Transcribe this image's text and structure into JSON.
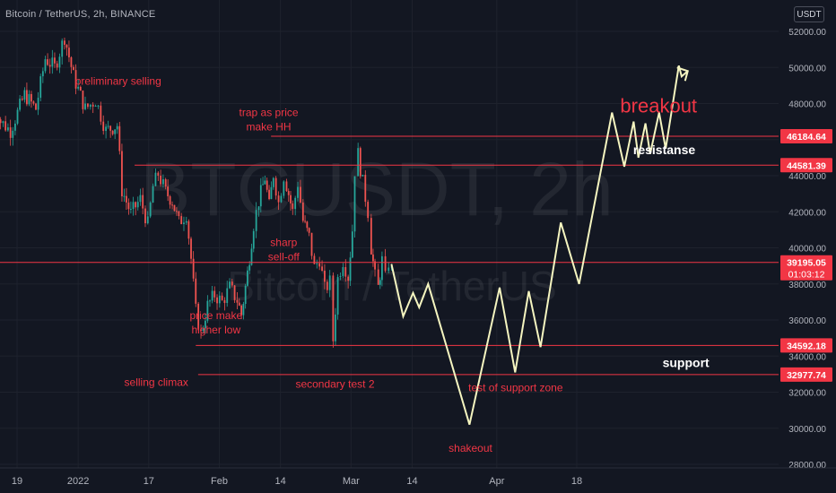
{
  "header": {
    "symbol_title": "Bitcoin / TetherUS, 2h, BINANCE",
    "currency_unit": "USDT"
  },
  "watermark": {
    "ticker": "BTCUSDT, 2h",
    "name": "Bitcoin / TetherUS"
  },
  "colors": {
    "background": "#131722",
    "candle_up": "#26a69a",
    "candle_down": "#ef5350",
    "level_line": "#f23645",
    "projection": "#f5f5c0",
    "annotation": "#f23645",
    "label_white": "#ffffff",
    "axis_text": "#b2b5be"
  },
  "chart_data": {
    "type": "candlestick",
    "title": "Bitcoin / TetherUS, 2h, BINANCE",
    "ylim": [
      27600,
      53000
    ],
    "y_ticks": [
      28000,
      30000,
      32000,
      34000,
      36000,
      38000,
      40000,
      42000,
      44000,
      46000,
      48000,
      50000,
      52000
    ],
    "x_ticks": [
      {
        "label": "19",
        "day": 19
      },
      {
        "label": "2022",
        "day": 32
      },
      {
        "label": "17",
        "day": 47
      },
      {
        "label": "Feb",
        "day": 62
      },
      {
        "label": "14",
        "day": 75
      },
      {
        "label": "Mar",
        "day": 90
      },
      {
        "label": "14",
        "day": 103
      },
      {
        "label": "Apr",
        "day": 121
      },
      {
        "label": "18",
        "day": 138
      }
    ],
    "price_path": [
      {
        "day": 13.3,
        "price": 49000
      },
      {
        "day": 15.5,
        "price": 47000
      },
      {
        "day": 17.6,
        "price": 46500
      },
      {
        "day": 20.6,
        "price": 48500
      },
      {
        "day": 23.0,
        "price": 47700
      },
      {
        "day": 25.0,
        "price": 50500
      },
      {
        "day": 27.0,
        "price": 50000
      },
      {
        "day": 29.1,
        "price": 51700
      },
      {
        "day": 31.0,
        "price": 49500
      },
      {
        "day": 33.5,
        "price": 47700
      },
      {
        "day": 35.7,
        "price": 48200
      },
      {
        "day": 37.9,
        "price": 46500
      },
      {
        "day": 40.3,
        "price": 46800
      },
      {
        "day": 41.3,
        "price": 43200
      },
      {
        "day": 43.2,
        "price": 41900
      },
      {
        "day": 45.2,
        "price": 42700
      },
      {
        "day": 46.8,
        "price": 41300
      },
      {
        "day": 47.9,
        "price": 43400
      },
      {
        "day": 49.0,
        "price": 44100
      },
      {
        "day": 50.6,
        "price": 43100
      },
      {
        "day": 52.0,
        "price": 42600
      },
      {
        "day": 53.4,
        "price": 41400
      },
      {
        "day": 55.0,
        "price": 41900
      },
      {
        "day": 56.0,
        "price": 39400
      },
      {
        "day": 57.0,
        "price": 36500
      },
      {
        "day": 58.1,
        "price": 35200
      },
      {
        "day": 59.5,
        "price": 36800
      },
      {
        "day": 61.0,
        "price": 37400
      },
      {
        "day": 62.6,
        "price": 37000
      },
      {
        "day": 64.2,
        "price": 37800
      },
      {
        "day": 65.8,
        "price": 37100
      },
      {
        "day": 66.7,
        "price": 36300
      },
      {
        "day": 68.0,
        "price": 38600
      },
      {
        "day": 69.3,
        "price": 41300
      },
      {
        "day": 70.4,
        "price": 42600
      },
      {
        "day": 71.7,
        "price": 43900
      },
      {
        "day": 72.6,
        "price": 42300
      },
      {
        "day": 73.5,
        "price": 44100
      },
      {
        "day": 74.6,
        "price": 42500
      },
      {
        "day": 75.7,
        "price": 44000
      },
      {
        "day": 76.3,
        "price": 43500
      },
      {
        "day": 77.6,
        "price": 42000
      },
      {
        "day": 78.7,
        "price": 43600
      },
      {
        "day": 79.8,
        "price": 41500
      },
      {
        "day": 81.1,
        "price": 40600
      },
      {
        "day": 82.2,
        "price": 38900
      },
      {
        "day": 83.3,
        "price": 39400
      },
      {
        "day": 84.4,
        "price": 37700
      },
      {
        "day": 85.5,
        "price": 38100
      },
      {
        "day": 86.2,
        "price": 34900
      },
      {
        "day": 87.2,
        "price": 38300
      },
      {
        "day": 88.3,
        "price": 39300
      },
      {
        "day": 89.4,
        "price": 38400
      },
      {
        "day": 90.3,
        "price": 41000
      },
      {
        "day": 90.8,
        "price": 44300
      },
      {
        "day": 91.5,
        "price": 45200
      },
      {
        "day": 92.5,
        "price": 43600
      },
      {
        "day": 93.6,
        "price": 42000
      },
      {
        "day": 94.3,
        "price": 40000
      },
      {
        "day": 95.1,
        "price": 38400
      },
      {
        "day": 95.8,
        "price": 37800
      },
      {
        "day": 96.6,
        "price": 39300
      },
      {
        "day": 97.3,
        "price": 38300
      },
      {
        "day": 98.0,
        "price": 39200
      },
      {
        "day": 98.6,
        "price": 38700
      }
    ],
    "levels": [
      {
        "label": "46184.64",
        "value": 46184.64,
        "x_start_day": 73
      },
      {
        "label": "44581.39",
        "value": 44581.39,
        "x_start_day": 44
      },
      {
        "label": "39195.05",
        "value": 39195.05,
        "x_start_day": 0,
        "countdown": "01:03:12"
      },
      {
        "label": "34592.18",
        "value": 34592.18,
        "x_start_day": 57
      },
      {
        "label": "32977.74",
        "value": 32977.74,
        "x_start_day": 57.5
      }
    ],
    "projection": [
      {
        "day": 98.6,
        "price": 39100
      },
      {
        "day": 101.1,
        "price": 36200
      },
      {
        "day": 103.2,
        "price": 37500
      },
      {
        "day": 104.5,
        "price": 36700
      },
      {
        "day": 106.4,
        "price": 38000
      },
      {
        "day": 115.2,
        "price": 30200
      },
      {
        "day": 121.6,
        "price": 37800
      },
      {
        "day": 124.9,
        "price": 33100
      },
      {
        "day": 127.8,
        "price": 37600
      },
      {
        "day": 130.3,
        "price": 34500
      },
      {
        "day": 134.6,
        "price": 41400
      },
      {
        "day": 138.5,
        "price": 38000
      },
      {
        "day": 145.5,
        "price": 47500
      },
      {
        "day": 148.1,
        "price": 44500
      },
      {
        "day": 150.1,
        "price": 47000
      },
      {
        "day": 151.1,
        "price": 45000
      },
      {
        "day": 152.6,
        "price": 46900
      },
      {
        "day": 153.6,
        "price": 45200
      },
      {
        "day": 155.5,
        "price": 47500
      },
      {
        "day": 156.9,
        "price": 45500
      },
      {
        "day": 159.7,
        "price": 50100
      },
      {
        "day": 160.3,
        "price": 49500
      },
      {
        "day": 161.6,
        "price": 49800
      }
    ],
    "annotations": [
      {
        "text": "preliminary selling",
        "day": 40.5,
        "price": 49050,
        "style": "red"
      },
      {
        "text": "trap as price",
        "day": 72.5,
        "price": 47300,
        "style": "red"
      },
      {
        "text": "make HH",
        "day": 72.5,
        "price": 46500,
        "style": "red"
      },
      {
        "text": "sharp",
        "day": 75.7,
        "price": 40100,
        "style": "red"
      },
      {
        "text": "sell-off",
        "day": 75.7,
        "price": 39300,
        "style": "red"
      },
      {
        "text": "price make",
        "day": 61.3,
        "price": 36050,
        "style": "red"
      },
      {
        "text": "higher low",
        "day": 61.3,
        "price": 35250,
        "style": "red"
      },
      {
        "text": "selling climax",
        "day": 48.6,
        "price": 32350,
        "style": "red"
      },
      {
        "text": "secondary test 2",
        "day": 86.6,
        "price": 32250,
        "style": "red"
      },
      {
        "text": "test of support zone",
        "day": 125.0,
        "price": 32050,
        "style": "red"
      },
      {
        "text": "shakeout",
        "day": 115.4,
        "price": 28700,
        "style": "red"
      },
      {
        "text": "breakout",
        "day": 155.4,
        "price": 47500,
        "style": "big-red"
      },
      {
        "text": "resistanse",
        "day": 156.6,
        "price": 45200,
        "style": "white"
      },
      {
        "text": "support",
        "day": 161.2,
        "price": 33400,
        "style": "white"
      }
    ]
  }
}
